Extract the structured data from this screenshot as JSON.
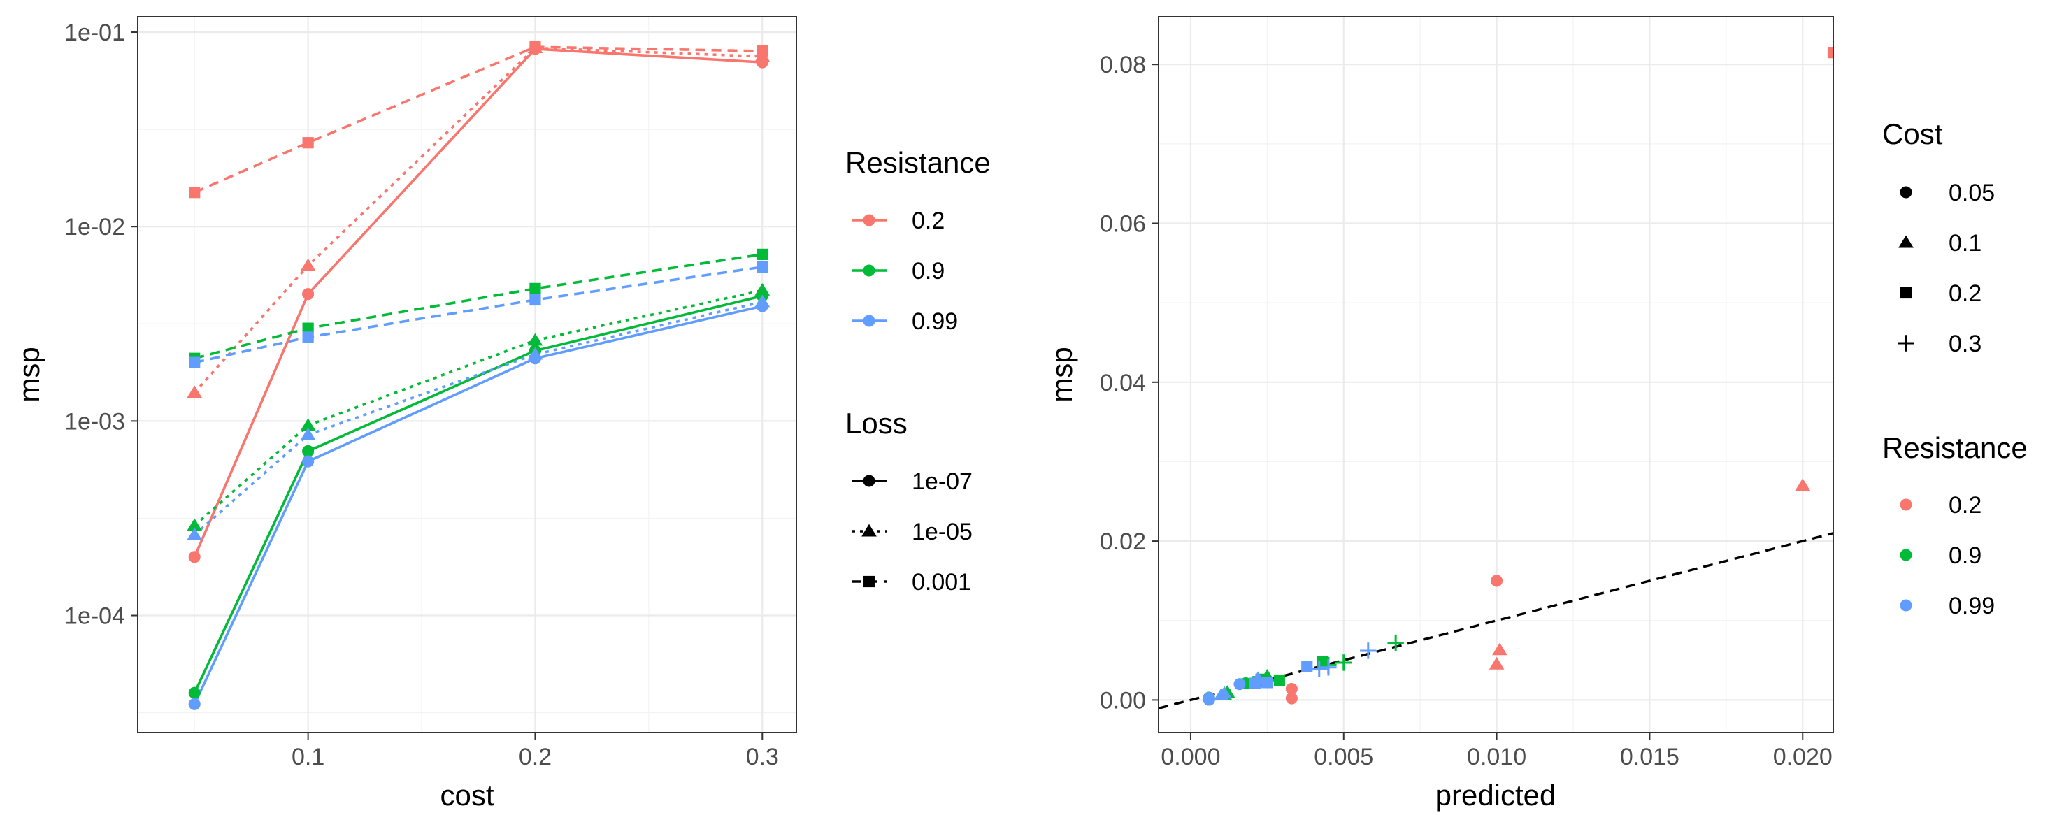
{
  "chart_data": [
    {
      "type": "line",
      "xlabel": "cost",
      "ylabel": "msp",
      "y_scale": "log10",
      "ylim": [
        2.5e-05,
        0.12
      ],
      "xlim": [
        0.025,
        0.315
      ],
      "x_ticks": [
        0.1,
        0.2,
        0.3
      ],
      "x_tick_labels": [
        "0.1",
        "0.2",
        "0.3"
      ],
      "y_ticks": [
        0.0001,
        0.001,
        0.01,
        0.1
      ],
      "y_tick_labels": [
        "1e-04",
        "1e-03",
        "1e-02",
        "1e-01"
      ],
      "grid": true,
      "x": [
        0.05,
        0.1,
        0.2,
        0.3
      ],
      "series": [
        {
          "resistance": "0.2",
          "loss": "1e-07",
          "values": [
            0.0002,
            0.0045,
            0.082,
            0.07
          ]
        },
        {
          "resistance": "0.2",
          "loss": "1e-05",
          "values": [
            0.0014,
            0.0063,
            0.083,
            0.075
          ]
        },
        {
          "resistance": "0.2",
          "loss": "0.001",
          "values": [
            0.015,
            0.027,
            0.084,
            0.08
          ]
        },
        {
          "resistance": "0.9",
          "loss": "1e-07",
          "values": [
            4e-05,
            0.0007,
            0.0023,
            0.0044
          ]
        },
        {
          "resistance": "0.9",
          "loss": "1e-05",
          "values": [
            0.00029,
            0.00095,
            0.0026,
            0.0047
          ]
        },
        {
          "resistance": "0.9",
          "loss": "0.001",
          "values": [
            0.0021,
            0.003,
            0.0048,
            0.0072
          ]
        },
        {
          "resistance": "0.99",
          "loss": "1e-07",
          "values": [
            3.5e-05,
            0.00062,
            0.0021,
            0.0039
          ]
        },
        {
          "resistance": "0.99",
          "loss": "1e-05",
          "values": [
            0.00026,
            0.00085,
            0.0022,
            0.0041
          ]
        },
        {
          "resistance": "0.99",
          "loss": "0.001",
          "values": [
            0.002,
            0.0027,
            0.0042,
            0.0062
          ]
        }
      ],
      "legends": [
        {
          "title": "Resistance",
          "placement": "right",
          "entries": [
            "0.2",
            "0.9",
            "0.99"
          ]
        },
        {
          "title": "Loss",
          "placement": "right",
          "entries": [
            "1e-07",
            "1e-05",
            "0.001"
          ]
        }
      ]
    },
    {
      "type": "scatter",
      "xlabel": "predicted",
      "ylabel": "msp",
      "xlim": [
        -0.00105,
        0.021
      ],
      "ylim": [
        -0.0041,
        0.086
      ],
      "x_ticks": [
        0,
        0.005,
        0.01,
        0.015,
        0.02
      ],
      "x_tick_labels": [
        "0.000",
        "0.005",
        "0.010",
        "0.015",
        "0.020"
      ],
      "y_ticks": [
        0,
        0.02,
        0.04,
        0.06,
        0.08
      ],
      "y_tick_labels": [
        "0.00",
        "0.02",
        "0.04",
        "0.06",
        "0.08"
      ],
      "grid": true,
      "reference_line": {
        "style": "dashed",
        "slope": 1,
        "intercept": 0
      },
      "points": [
        {
          "x": 0.0033,
          "y": 0.0002,
          "resistance": "0.2",
          "cost": "0.05"
        },
        {
          "x": 0.0033,
          "y": 0.0014,
          "resistance": "0.2",
          "cost": "0.05"
        },
        {
          "x": 0.01,
          "y": 0.015,
          "resistance": "0.2",
          "cost": "0.05"
        },
        {
          "x": 0.01,
          "y": 0.0045,
          "resistance": "0.2",
          "cost": "0.1"
        },
        {
          "x": 0.0101,
          "y": 0.0063,
          "resistance": "0.2",
          "cost": "0.1"
        },
        {
          "x": 0.02,
          "y": 0.027,
          "resistance": "0.2",
          "cost": "0.1"
        },
        {
          "x": 0.021,
          "y": 0.0815,
          "resistance": "0.2",
          "cost": "0.2"
        },
        {
          "x": 0.0006,
          "y": 4e-05,
          "resistance": "0.9",
          "cost": "0.05"
        },
        {
          "x": 0.0006,
          "y": 0.00029,
          "resistance": "0.9",
          "cost": "0.05"
        },
        {
          "x": 0.0018,
          "y": 0.0021,
          "resistance": "0.9",
          "cost": "0.05"
        },
        {
          "x": 0.0011,
          "y": 0.0007,
          "resistance": "0.9",
          "cost": "0.1"
        },
        {
          "x": 0.0012,
          "y": 0.00095,
          "resistance": "0.9",
          "cost": "0.1"
        },
        {
          "x": 0.0025,
          "y": 0.003,
          "resistance": "0.9",
          "cost": "0.1"
        },
        {
          "x": 0.0022,
          "y": 0.0023,
          "resistance": "0.9",
          "cost": "0.2"
        },
        {
          "x": 0.0023,
          "y": 0.0026,
          "resistance": "0.9",
          "cost": "0.2"
        },
        {
          "x": 0.0043,
          "y": 0.0048,
          "resistance": "0.9",
          "cost": "0.2"
        },
        {
          "x": 0.0029,
          "y": 0.0025,
          "resistance": "0.9",
          "cost": "0.2"
        },
        {
          "x": 0.0045,
          "y": 0.0044,
          "resistance": "0.9",
          "cost": "0.3"
        },
        {
          "x": 0.005,
          "y": 0.0047,
          "resistance": "0.9",
          "cost": "0.3"
        },
        {
          "x": 0.0067,
          "y": 0.0072,
          "resistance": "0.9",
          "cost": "0.3"
        },
        {
          "x": 0.0006,
          "y": 3.5e-05,
          "resistance": "0.99",
          "cost": "0.05"
        },
        {
          "x": 0.0006,
          "y": 0.00026,
          "resistance": "0.99",
          "cost": "0.05"
        },
        {
          "x": 0.0016,
          "y": 0.002,
          "resistance": "0.99",
          "cost": "0.05"
        },
        {
          "x": 0.001,
          "y": 0.00062,
          "resistance": "0.99",
          "cost": "0.1"
        },
        {
          "x": 0.0011,
          "y": 0.00085,
          "resistance": "0.99",
          "cost": "0.1"
        },
        {
          "x": 0.0022,
          "y": 0.0027,
          "resistance": "0.99",
          "cost": "0.1"
        },
        {
          "x": 0.0021,
          "y": 0.0021,
          "resistance": "0.99",
          "cost": "0.2"
        },
        {
          "x": 0.0025,
          "y": 0.0022,
          "resistance": "0.99",
          "cost": "0.2"
        },
        {
          "x": 0.0038,
          "y": 0.0042,
          "resistance": "0.99",
          "cost": "0.2"
        },
        {
          "x": 0.0042,
          "y": 0.0039,
          "resistance": "0.99",
          "cost": "0.3"
        },
        {
          "x": 0.0045,
          "y": 0.0041,
          "resistance": "0.99",
          "cost": "0.3"
        },
        {
          "x": 0.0058,
          "y": 0.0062,
          "resistance": "0.99",
          "cost": "0.3"
        }
      ],
      "legends": [
        {
          "title": "Cost",
          "placement": "right",
          "entries": [
            "0.05",
            "0.1",
            "0.2",
            "0.3"
          ]
        },
        {
          "title": "Resistance",
          "placement": "right",
          "entries": [
            "0.2",
            "0.9",
            "0.99"
          ]
        }
      ]
    }
  ],
  "colors": {
    "resistance_0.2": "#F8766D",
    "resistance_0.9": "#00BA38",
    "resistance_0.99": "#619CFF",
    "reference_line": "#000000",
    "grid": "#EBEBEB",
    "panel_border": "#333333"
  },
  "loss_styles": {
    "1e-07": {
      "dash": "solid",
      "shape": "circle"
    },
    "1e-05": {
      "dash": "dotted",
      "shape": "triangle"
    },
    "0.001": {
      "dash": "dashed",
      "shape": "square"
    }
  },
  "cost_shapes": {
    "0.05": "circle",
    "0.1": "triangle",
    "0.2": "square",
    "0.3": "plus"
  }
}
